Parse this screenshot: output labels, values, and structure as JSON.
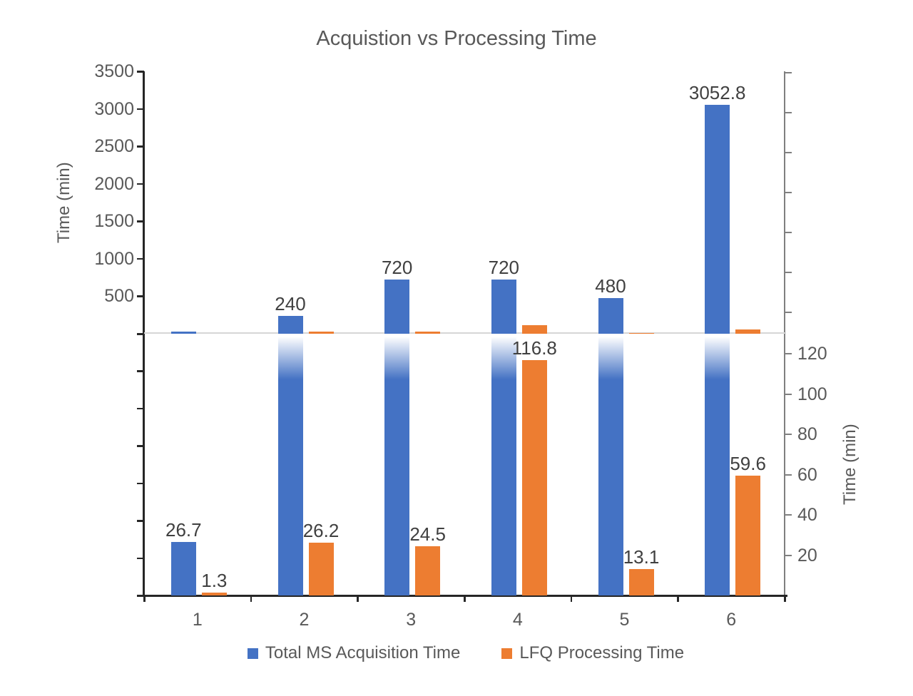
{
  "title": "Acquistion vs Processing Time",
  "chart_data": {
    "type": "bar",
    "title": "Acquistion vs Processing Time",
    "categories": [
      "1",
      "2",
      "3",
      "4",
      "5",
      "6"
    ],
    "series": [
      {
        "name": "Total MS Acquisition Time",
        "color": "#4472C4",
        "axis": "left",
        "values": [
          26.7,
          240,
          720,
          720,
          480,
          3052.8
        ]
      },
      {
        "name": "LFQ Processing Time",
        "color": "#ED7D31",
        "axis": "right",
        "values": [
          1.3,
          26.2,
          24.5,
          116.8,
          13.1,
          59.6
        ]
      }
    ],
    "left_axis": {
      "label": "Time (min)",
      "ticks": [
        500,
        1000,
        1500,
        2000,
        2500,
        3000,
        3500
      ],
      "range": [
        0,
        3500
      ]
    },
    "right_axis": {
      "label": "Time (min)",
      "ticks": [
        20,
        40,
        60,
        80,
        100,
        120
      ],
      "range": [
        0,
        130
      ]
    },
    "split_panels": true,
    "grid": false,
    "data_labels": true,
    "legend_position": "bottom"
  }
}
